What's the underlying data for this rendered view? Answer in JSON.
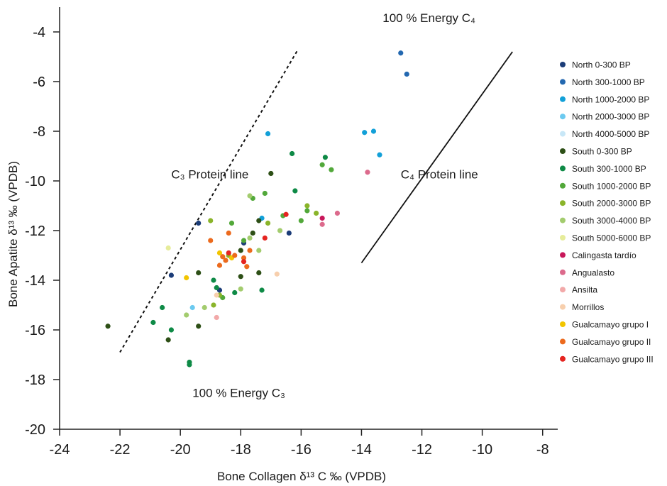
{
  "chart_data": {
    "type": "scatter",
    "title": "",
    "xlabel": "Bone Collagen δ¹³ C ‰ (VPDB)",
    "ylabel": "Bone Apatite δ¹³ ‰ (VPDB)",
    "xlim": [
      -24,
      -7.5
    ],
    "ylim": [
      -20,
      -3
    ],
    "xticks": [
      -24,
      -22,
      -20,
      -18,
      -16,
      -14,
      -12,
      -10,
      -8
    ],
    "yticks": [
      -4,
      -6,
      -8,
      -10,
      -12,
      -14,
      -16,
      -18,
      -20
    ],
    "grid": false,
    "legend_position": "right",
    "annotations": [
      {
        "text": "100 % Energy C₄",
        "x": -13.3,
        "y": -3.6
      },
      {
        "text": "C₃ Protein line",
        "x": -20.3,
        "y": -9.9
      },
      {
        "text": "C₄ Protein line",
        "x": -12.7,
        "y": -9.9
      },
      {
        "text": "100 % Energy C₃",
        "x": -19.6,
        "y": -18.7
      }
    ],
    "reference_lines": [
      {
        "name": "C3 protein line",
        "style": "dotted",
        "points": [
          [
            -22,
            -16.9
          ],
          [
            -16.1,
            -4.7
          ]
        ]
      },
      {
        "name": "C4 protein line",
        "style": "solid",
        "points": [
          [
            -14,
            -13.3
          ],
          [
            -9,
            -4.8
          ]
        ]
      }
    ],
    "series": [
      {
        "name": "North 0-300 BP",
        "color": "#1b3c78",
        "points": [
          [
            -19.4,
            -11.7
          ],
          [
            -20.3,
            -13.8
          ],
          [
            -18.7,
            -14.4
          ],
          [
            -16.4,
            -12.1
          ],
          [
            -17.9,
            -12.5
          ]
        ]
      },
      {
        "name": "North 300-1000 BP",
        "color": "#2368b0",
        "points": [
          [
            -12.7,
            -4.85
          ],
          [
            -12.5,
            -5.7
          ]
        ]
      },
      {
        "name": "North 1000-2000 BP",
        "color": "#12a0d8",
        "points": [
          [
            -17.1,
            -8.1
          ],
          [
            -13.9,
            -8.05
          ],
          [
            -13.6,
            -8.0
          ],
          [
            -13.4,
            -8.95
          ],
          [
            -17.3,
            -11.5
          ]
        ]
      },
      {
        "name": "North 2000-3000 BP",
        "color": "#6ccaf0",
        "points": [
          [
            -19.6,
            -15.1
          ]
        ]
      },
      {
        "name": "North 4000-5000 BP",
        "color": "#c8e7f7",
        "points": [
          [
            -18.5,
            -13.2
          ]
        ]
      },
      {
        "name": "South 0-300 BP",
        "color": "#2d4f16",
        "points": [
          [
            -22.4,
            -15.85
          ],
          [
            -20.4,
            -16.4
          ],
          [
            -19.4,
            -13.7
          ],
          [
            -19.4,
            -15.85
          ],
          [
            -18.0,
            -12.8
          ],
          [
            -17.6,
            -12.1
          ],
          [
            -17.4,
            -13.7
          ],
          [
            -17.0,
            -9.7
          ],
          [
            -18.0,
            -13.85
          ],
          [
            -17.4,
            -11.6
          ]
        ]
      },
      {
        "name": "South 300-1000 BP",
        "color": "#0e8a46",
        "points": [
          [
            -20.6,
            -15.1
          ],
          [
            -20.3,
            -16.0
          ],
          [
            -20.9,
            -15.7
          ],
          [
            -19.7,
            -17.3
          ],
          [
            -19.7,
            -17.4
          ],
          [
            -18.9,
            -14.0
          ],
          [
            -18.8,
            -14.3
          ],
          [
            -18.2,
            -14.5
          ],
          [
            -17.3,
            -14.4
          ],
          [
            -16.3,
            -8.9
          ],
          [
            -16.2,
            -10.4
          ],
          [
            -15.2,
            -9.05
          ]
        ]
      },
      {
        "name": "South 1000-2000 BP",
        "color": "#52a83a",
        "points": [
          [
            -18.6,
            -14.7
          ],
          [
            -17.9,
            -12.4
          ],
          [
            -17.6,
            -10.7
          ],
          [
            -17.2,
            -10.5
          ],
          [
            -18.3,
            -11.7
          ],
          [
            -16.6,
            -11.4
          ],
          [
            -16.0,
            -11.6
          ],
          [
            -15.8,
            -11.2
          ],
          [
            -15.3,
            -9.35
          ],
          [
            -15.0,
            -9.55
          ]
        ]
      },
      {
        "name": "South 2000-3000 BP",
        "color": "#8ab42a",
        "points": [
          [
            -19.0,
            -11.6
          ],
          [
            -18.9,
            -15.0
          ],
          [
            -18.7,
            -14.6
          ],
          [
            -17.1,
            -11.7
          ],
          [
            -15.5,
            -11.3
          ],
          [
            -15.8,
            -11.0
          ],
          [
            -18.4,
            -13.0
          ]
        ]
      },
      {
        "name": "South 3000-4000 BP",
        "color": "#a3cc6e",
        "points": [
          [
            -19.2,
            -15.1
          ],
          [
            -19.8,
            -15.4
          ],
          [
            -17.7,
            -10.6
          ],
          [
            -17.7,
            -12.3
          ],
          [
            -17.4,
            -12.8
          ],
          [
            -18.0,
            -14.35
          ],
          [
            -16.7,
            -12.0
          ]
        ]
      },
      {
        "name": "South 5000-6000 BP",
        "color": "#e6ec9a",
        "points": [
          [
            -20.4,
            -12.7
          ]
        ]
      },
      {
        "name": "Calingasta tardío",
        "color": "#c8175a",
        "points": [
          [
            -15.3,
            -11.5
          ]
        ]
      },
      {
        "name": "Angualasto",
        "color": "#dc6a8c",
        "points": [
          [
            -15.3,
            -11.75
          ],
          [
            -14.8,
            -11.3
          ],
          [
            -13.8,
            -9.65
          ]
        ]
      },
      {
        "name": "Ansilta",
        "color": "#f2a9a9",
        "points": [
          [
            -18.8,
            -15.5
          ]
        ]
      },
      {
        "name": "Morrillos",
        "color": "#f7cfad",
        "points": [
          [
            -16.8,
            -13.75
          ],
          [
            -18.8,
            -14.6
          ]
        ]
      },
      {
        "name": "Gualcamayo grupo I",
        "color": "#f2c500",
        "points": [
          [
            -19.8,
            -13.9
          ],
          [
            -18.7,
            -12.9
          ],
          [
            -18.3,
            -13.1
          ]
        ]
      },
      {
        "name": "Gualcamayo grupo II",
        "color": "#ec6a1d",
        "points": [
          [
            -19.0,
            -12.4
          ],
          [
            -18.4,
            -12.1
          ],
          [
            -18.6,
            -13.05
          ],
          [
            -18.2,
            -13.0
          ],
          [
            -17.9,
            -13.1
          ],
          [
            -18.7,
            -13.4
          ],
          [
            -17.8,
            -13.45
          ],
          [
            -17.7,
            -12.8
          ],
          [
            -18.5,
            -13.2
          ]
        ]
      },
      {
        "name": "Gualcamayo grupo III",
        "color": "#e52420",
        "points": [
          [
            -18.4,
            -12.9
          ],
          [
            -17.9,
            -13.25
          ],
          [
            -17.2,
            -12.3
          ],
          [
            -16.5,
            -11.35
          ]
        ]
      }
    ]
  }
}
